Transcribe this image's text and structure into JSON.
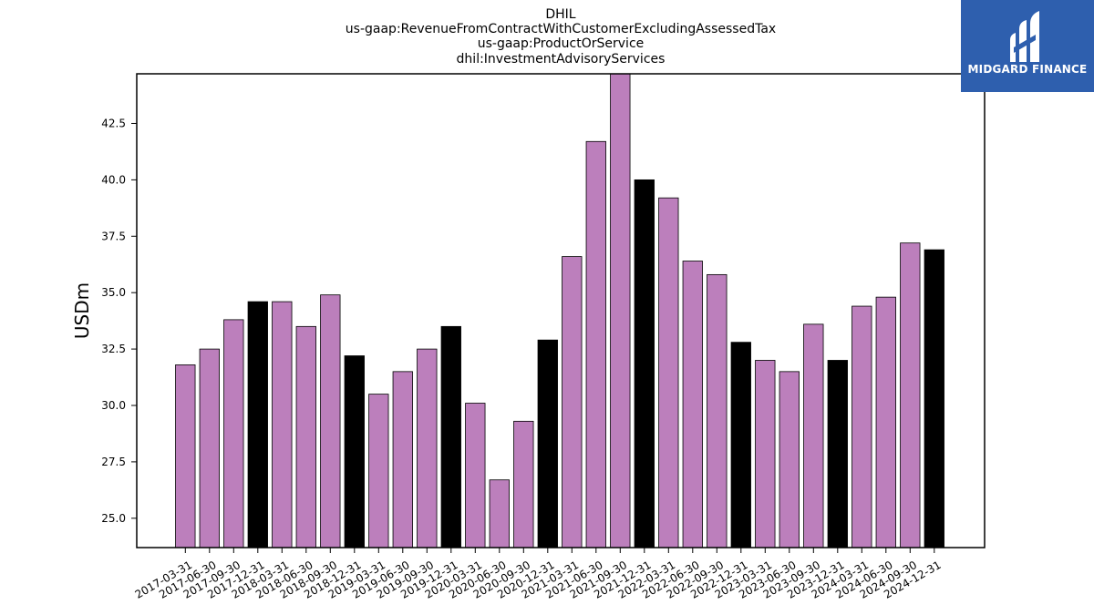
{
  "chart_data": {
    "type": "bar",
    "title_lines": [
      "DHIL",
      "us-gaap:RevenueFromContractWithCustomerExcludingAssessedTax",
      "us-gaap:ProductOrService",
      "dhil:InvestmentAdvisoryServices"
    ],
    "ylabel": "USDm",
    "xlabel": "",
    "ylim": [
      23.7,
      44.7
    ],
    "yticks": [
      "25.0",
      "27.5",
      "30.0",
      "32.5",
      "35.0",
      "37.5",
      "40.0",
      "42.5"
    ],
    "grid": false,
    "colors": {
      "quarter": "#bc7fbc",
      "year_end": "#000000",
      "edge": "#000000"
    },
    "categories": [
      "2017-03-31",
      "2017-06-30",
      "2017-09-30",
      "2017-12-31",
      "2018-03-31",
      "2018-06-30",
      "2018-09-30",
      "2018-12-31",
      "2019-03-31",
      "2019-06-30",
      "2019-09-30",
      "2019-12-31",
      "2020-03-31",
      "2020-06-30",
      "2020-09-30",
      "2020-12-31",
      "2021-03-31",
      "2021-06-30",
      "2021-09-30",
      "2021-12-31",
      "2022-03-31",
      "2022-06-30",
      "2022-09-30",
      "2022-12-31",
      "2023-03-31",
      "2023-06-30",
      "2023-09-30",
      "2023-12-31",
      "2024-03-31",
      "2024-06-30",
      "2024-09-30",
      "2024-12-31"
    ],
    "values": [
      31.8,
      32.5,
      33.8,
      34.6,
      34.6,
      33.5,
      34.9,
      32.2,
      30.5,
      31.5,
      32.5,
      33.5,
      30.1,
      26.7,
      29.3,
      32.9,
      36.6,
      41.7,
      44.7,
      40.0,
      39.2,
      36.4,
      35.8,
      32.8,
      32.0,
      31.5,
      33.6,
      32.0,
      34.4,
      34.8,
      37.2,
      36.9
    ]
  },
  "logo": {
    "text": "MIDGARD FINANCE",
    "icon": "midgard-finance-logo-icon"
  }
}
